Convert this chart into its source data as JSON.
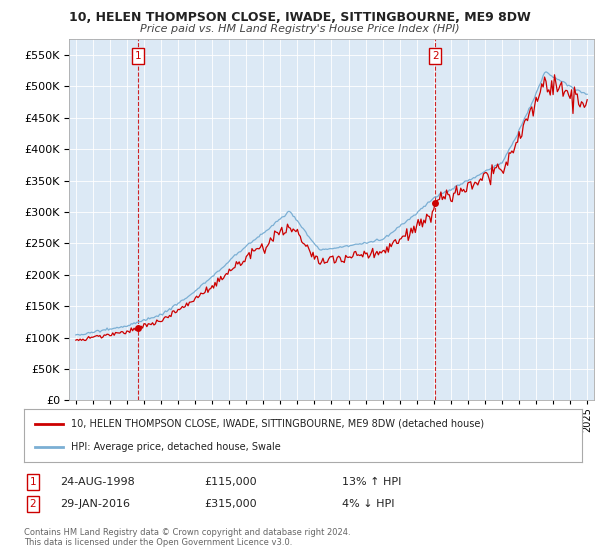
{
  "title": "10, HELEN THOMPSON CLOSE, IWADE, SITTINGBOURNE, ME9 8DW",
  "subtitle": "Price paid vs. HM Land Registry's House Price Index (HPI)",
  "legend_line1": "10, HELEN THOMPSON CLOSE, IWADE, SITTINGBOURNE, ME9 8DW (detached house)",
  "legend_line2": "HPI: Average price, detached house, Swale",
  "annotation1_label": "1",
  "annotation1_date": "24-AUG-1998",
  "annotation1_price": "£115,000",
  "annotation1_hpi": "13% ↑ HPI",
  "annotation1_year": 1998.65,
  "annotation1_value": 115000,
  "annotation2_label": "2",
  "annotation2_date": "29-JAN-2016",
  "annotation2_price": "£315,000",
  "annotation2_hpi": "4% ↓ HPI",
  "annotation2_year": 2016.08,
  "annotation2_value": 315000,
  "property_color": "#cc0000",
  "hpi_color": "#7bafd4",
  "plot_bg_color": "#dce9f5",
  "ylim": [
    0,
    575000
  ],
  "yticks": [
    0,
    50000,
    100000,
    150000,
    200000,
    250000,
    300000,
    350000,
    400000,
    450000,
    500000,
    550000
  ],
  "background_color": "#ffffff",
  "grid_color": "#ffffff",
  "footer_text": "Contains HM Land Registry data © Crown copyright and database right 2024.\nThis data is licensed under the Open Government Licence v3.0."
}
